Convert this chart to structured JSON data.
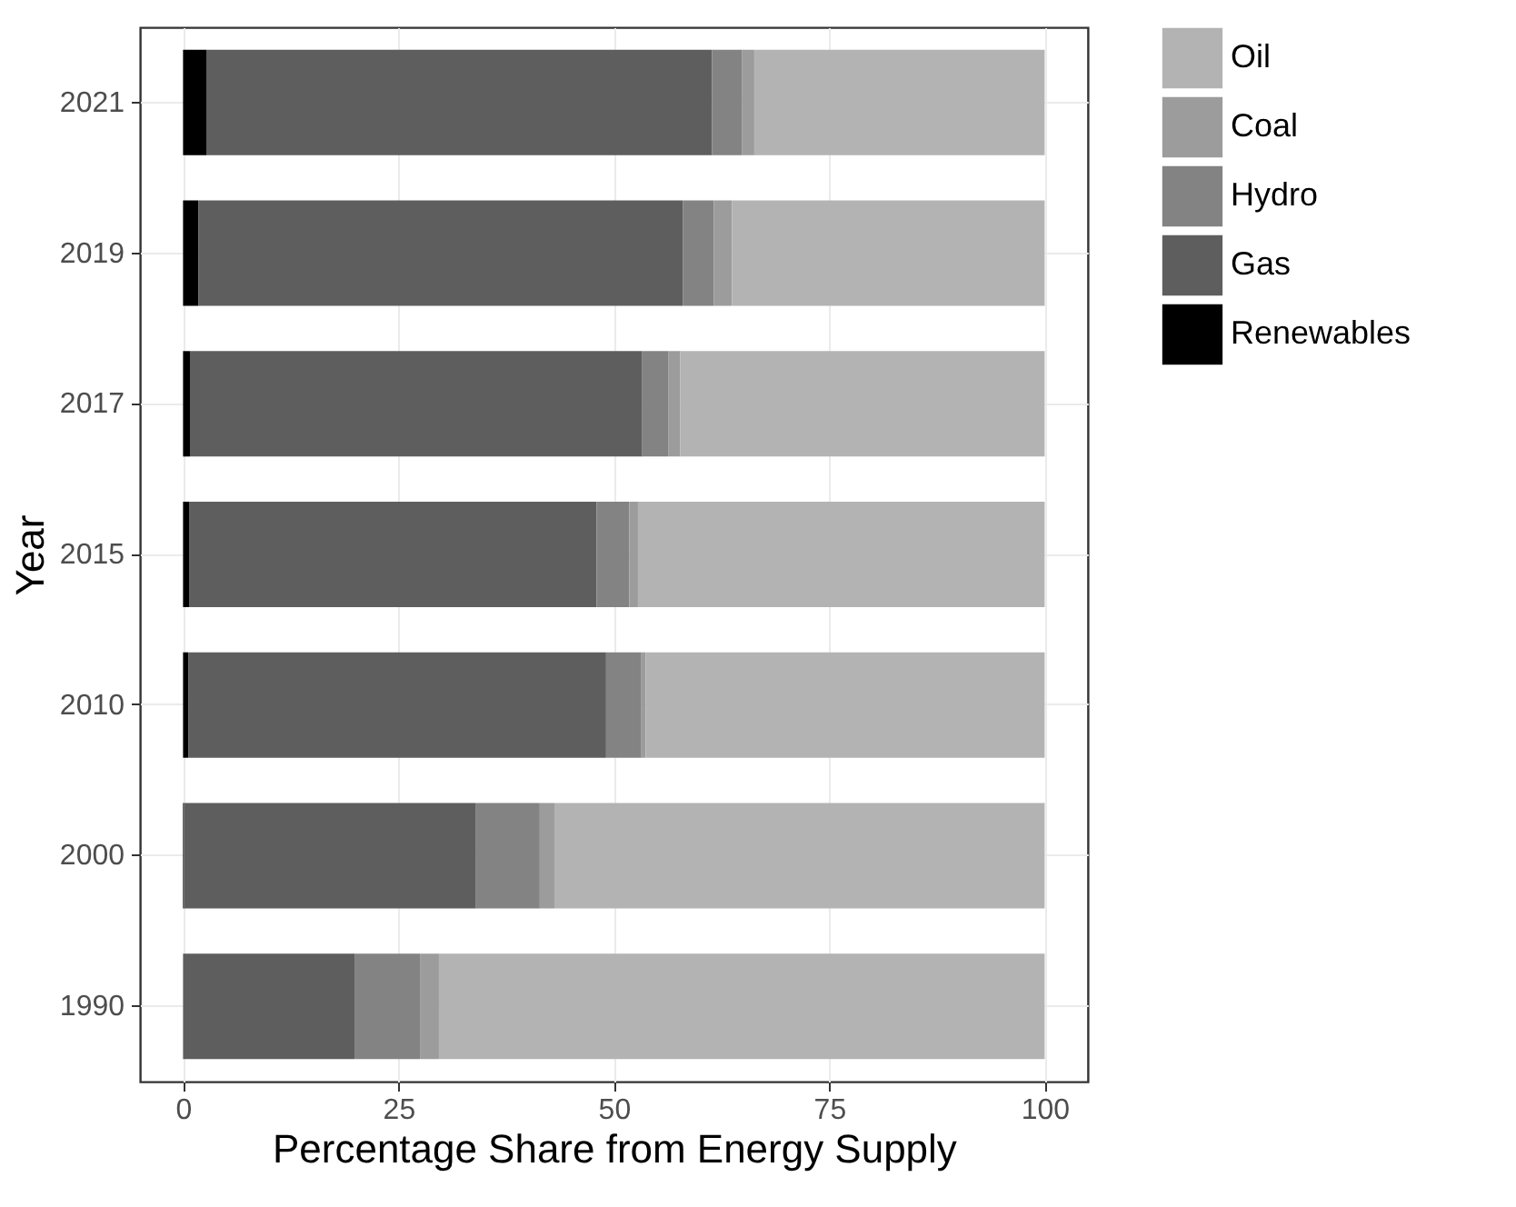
{
  "chart_data": {
    "type": "bar",
    "orientation": "horizontal",
    "stacked": true,
    "xlabel": "Percentage Share from Energy Supply",
    "ylabel": "Year",
    "categories": [
      "2021",
      "2019",
      "2017",
      "2015",
      "2010",
      "2000",
      "1990"
    ],
    "series": [
      {
        "name": "Renewables",
        "color": "#000000",
        "values": [
          2.7,
          1.8,
          0.8,
          0.7,
          0.6,
          0.1,
          0
        ]
      },
      {
        "name": "Gas",
        "color": "#5e5e5e",
        "values": [
          58.7,
          56.2,
          52.5,
          47.3,
          48.5,
          33.9,
          19.9
        ]
      },
      {
        "name": "Hydro",
        "color": "#838383",
        "values": [
          3.5,
          3.6,
          3.0,
          3.8,
          4.1,
          7.4,
          7.6
        ]
      },
      {
        "name": "Coal",
        "color": "#9c9c9c",
        "values": [
          1.4,
          2.1,
          1.4,
          1.0,
          0.5,
          1.7,
          2.2
        ]
      },
      {
        "name": "Oil",
        "color": "#b3b3b3",
        "values": [
          33.7,
          36.3,
          42.3,
          47.2,
          46.3,
          56.9,
          70.3
        ]
      }
    ],
    "xlim": [
      -5,
      105
    ],
    "xticks": [
      0,
      25,
      50,
      75,
      100
    ],
    "grid": true,
    "legend": "right"
  }
}
